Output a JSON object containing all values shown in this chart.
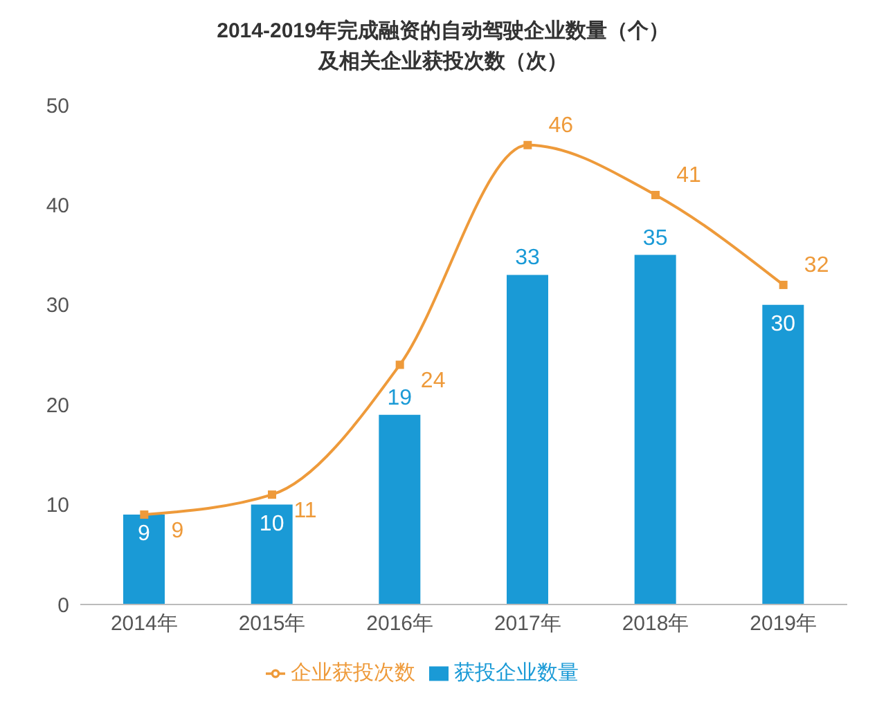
{
  "chart_data": {
    "type": "bar",
    "title": "2014-2019年完成融资的自动驾驶企业数量（个）及相关企业获投次数（次）",
    "categories": [
      "2014年",
      "2015年",
      "2016年",
      "2017年",
      "2018年",
      "2019年"
    ],
    "series": [
      {
        "name": "获投企业数量",
        "color": "#1a9ad6",
        "values": [
          9,
          10,
          19,
          33,
          35,
          30
        ]
      },
      {
        "name": "企业获投次数",
        "type": "line",
        "color": "#ee9a3a",
        "values": [
          9,
          11,
          24,
          46,
          41,
          32
        ]
      }
    ],
    "ylim": [
      0,
      50
    ],
    "yticks": [
      0,
      10,
      20,
      30,
      40,
      50
    ],
    "grid": false,
    "legend": "bottom",
    "marker": "square",
    "line_style": "solid",
    "data_labels": true
  }
}
